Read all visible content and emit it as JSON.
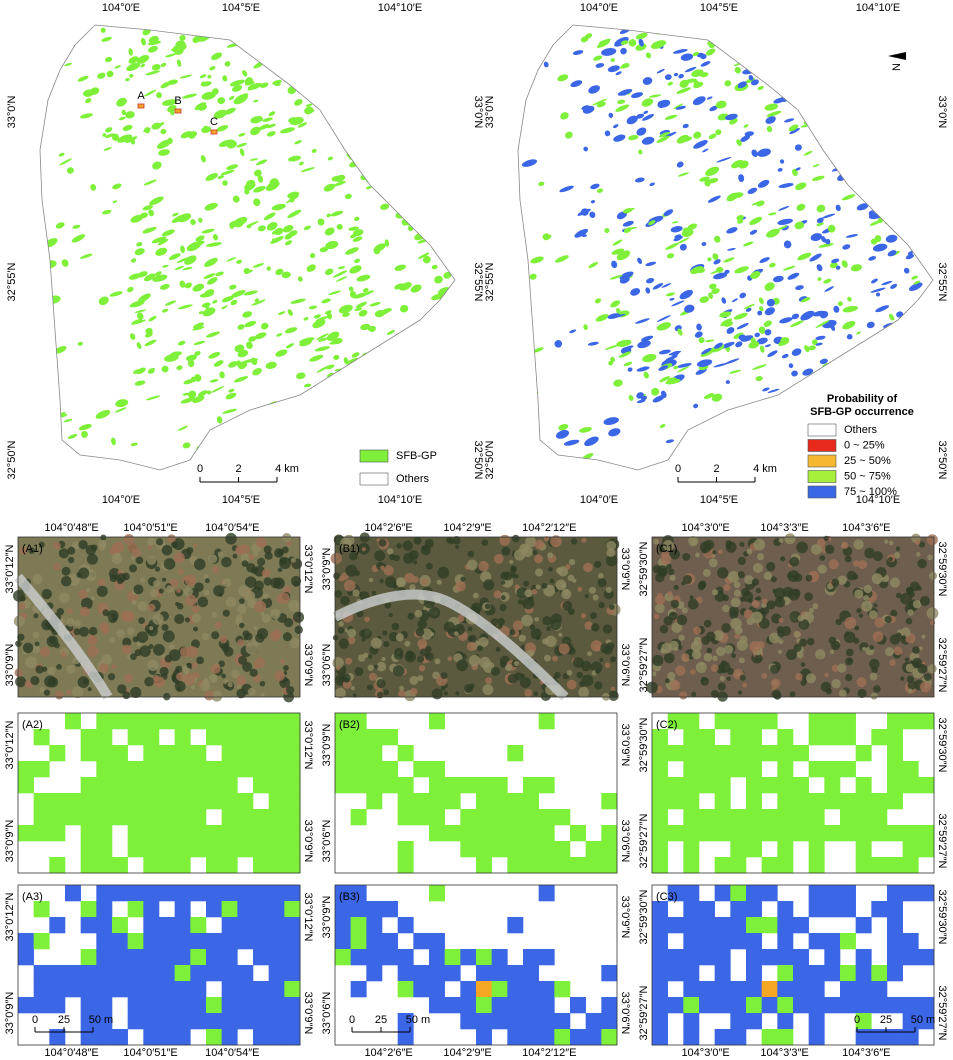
{
  "overview": {
    "x_labels": [
      "104°0′E",
      "104°5′E",
      "104°10′E"
    ],
    "y_labels": [
      "33°0′N",
      "32°55′N",
      "32°50′N"
    ],
    "sites": [
      "A",
      "B",
      "C"
    ],
    "legend_left": [
      "SFB-GP",
      "Others"
    ],
    "legend_right_title": [
      "Probability of",
      "SFB-GP occurrence"
    ],
    "legend_right": [
      "Others",
      "0 ~ 25%",
      "25 ~ 50%",
      "50 ~ 75%",
      "75 ~ 100%"
    ],
    "scale": [
      "0",
      "2",
      "4 km"
    ],
    "north": "N"
  },
  "zoom": {
    "columns": [
      {
        "x_labels": [
          "104°0′48″E",
          "104°0′51″E",
          "104°0′54″E"
        ],
        "y_labels": [
          "33°0′12″N",
          "33°0′9″N"
        ],
        "panels": [
          "(A1)",
          "(A2)",
          "(A3)"
        ]
      },
      {
        "x_labels": [
          "104°2′6″E",
          "104°2′9″E",
          "104°2′12″E"
        ],
        "y_labels": [
          "33°0′9″N",
          "33°0′6″N"
        ],
        "panels": [
          "(B1)",
          "(B2)",
          "(B3)"
        ]
      },
      {
        "x_labels": [
          "104°3′0″E",
          "104°3′3″E",
          "104°3′6″E"
        ],
        "y_labels": [
          "32°59′30″N",
          "32°59′27″N"
        ],
        "panels": [
          "(C1)",
          "(C2)",
          "(C3)"
        ]
      }
    ],
    "scale": [
      "0",
      "25",
      "50 m"
    ]
  }
}
